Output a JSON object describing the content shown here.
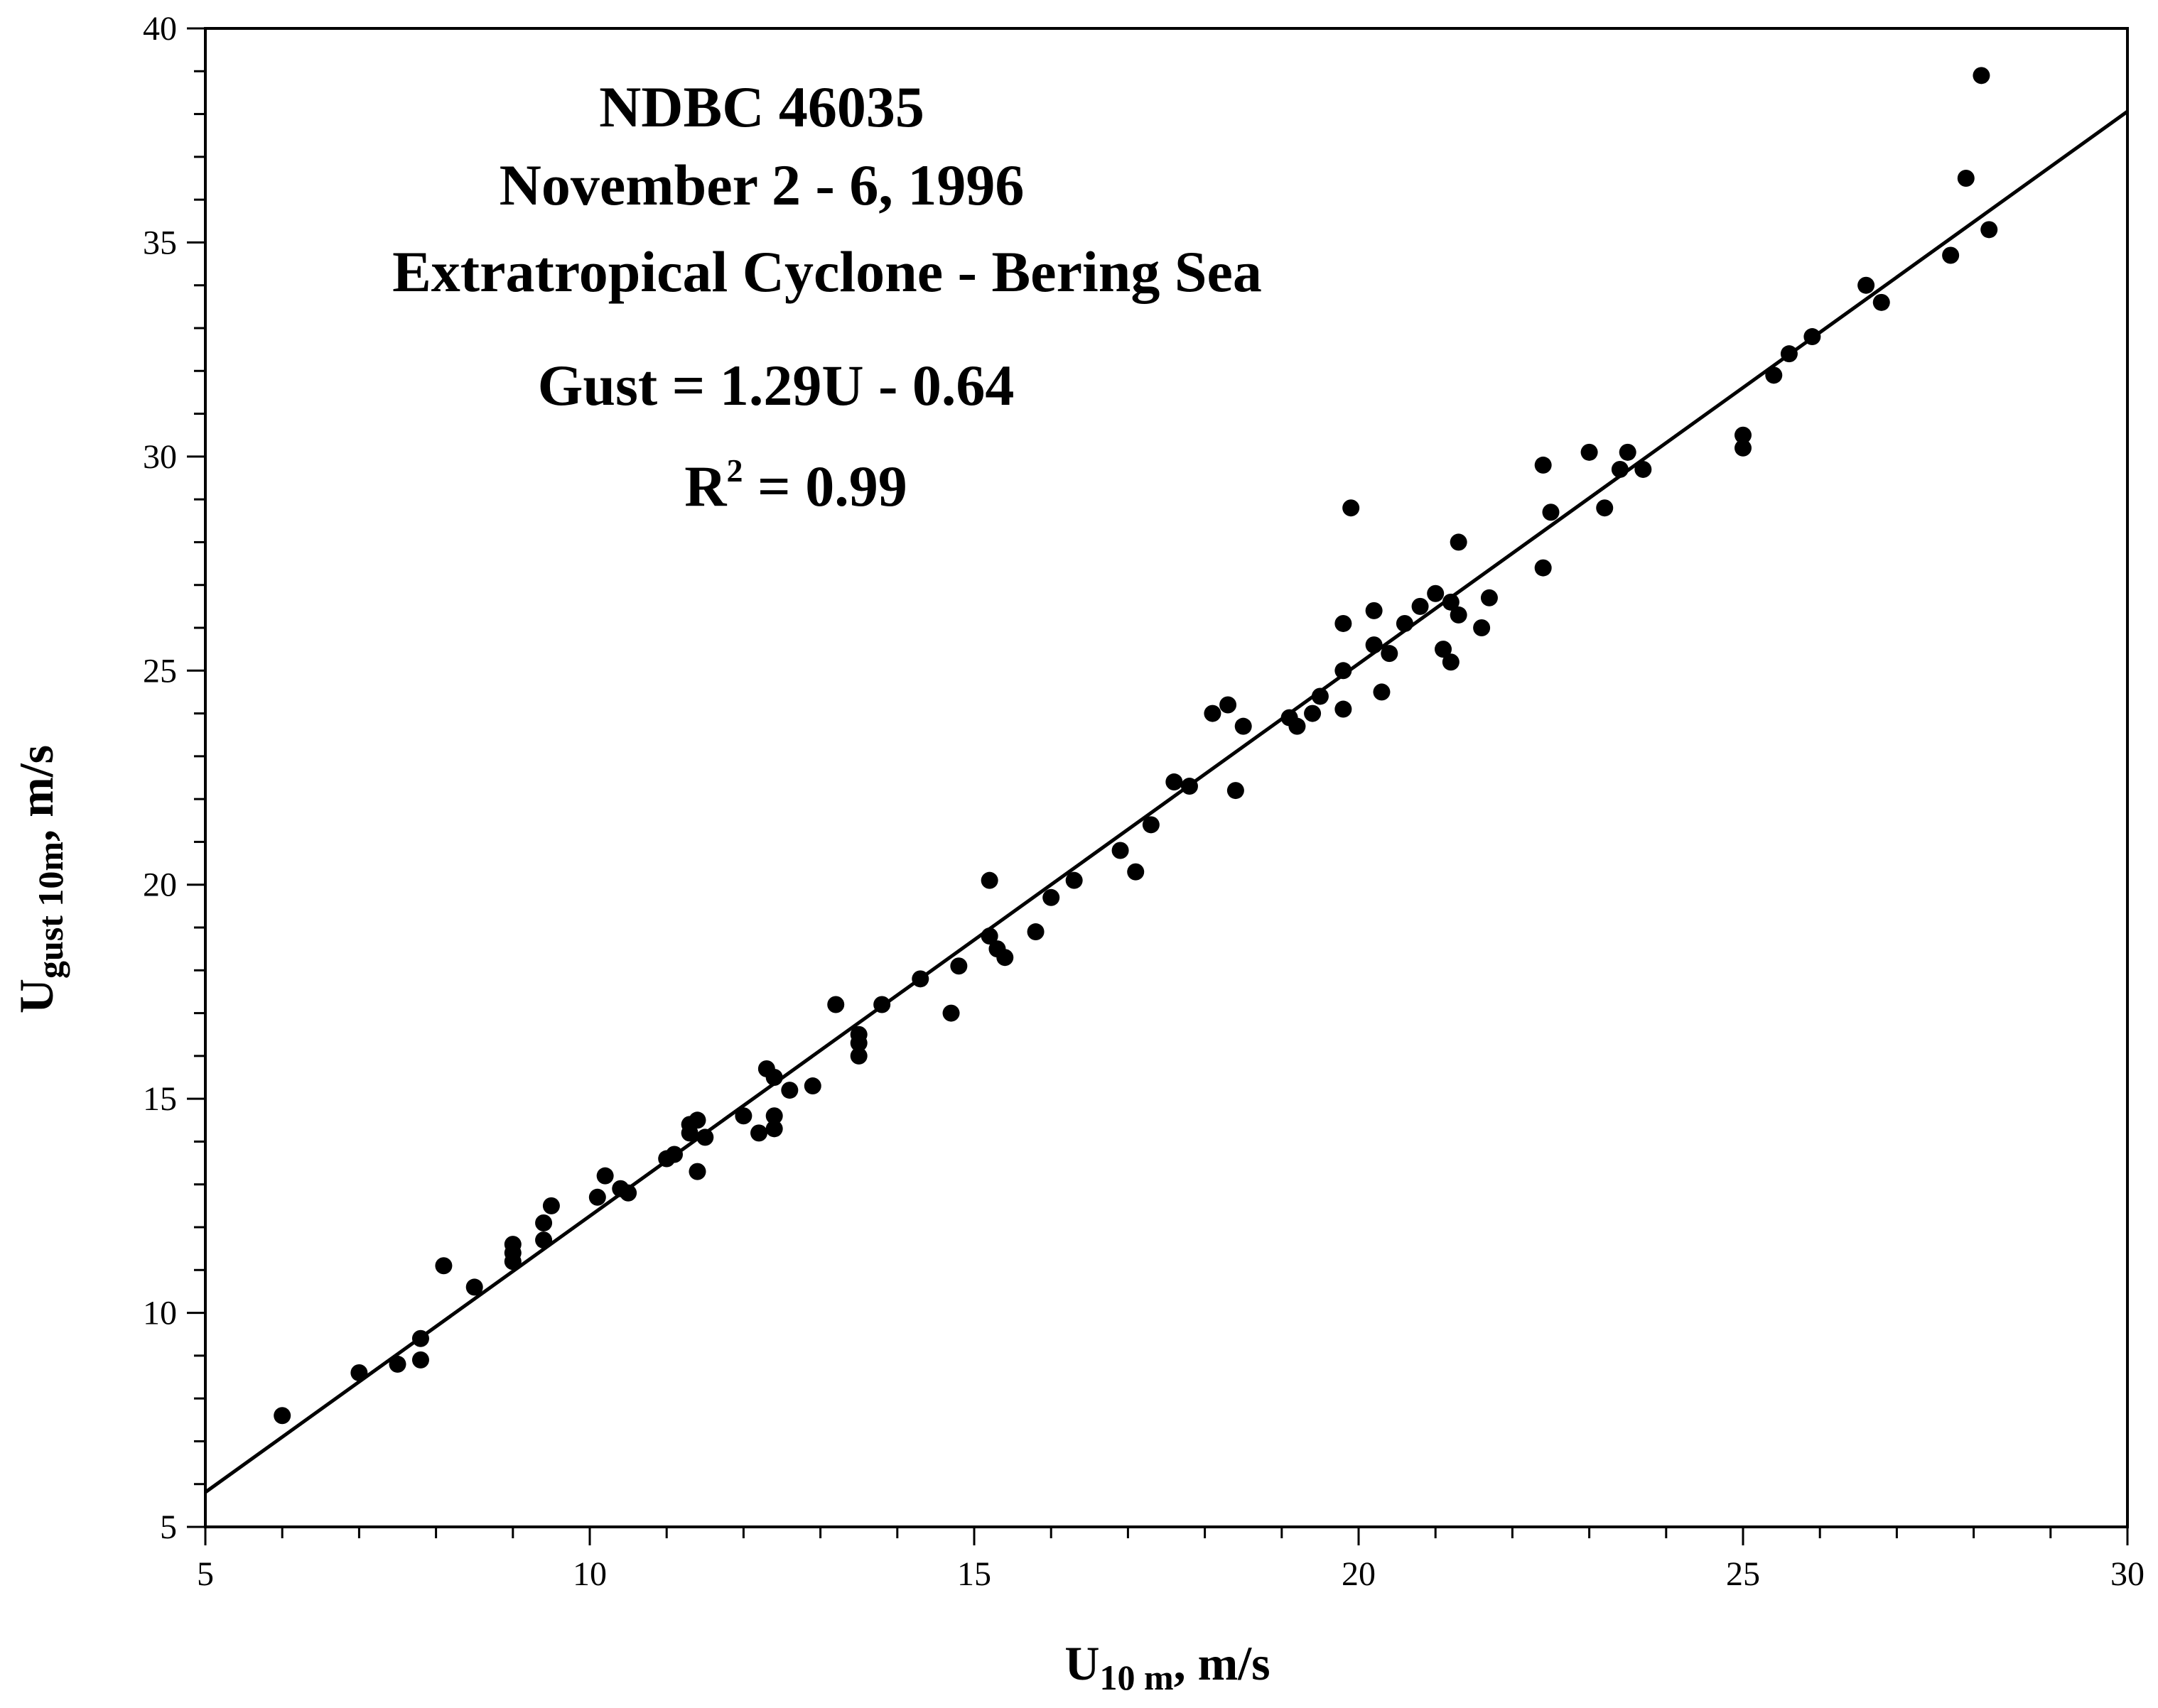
{
  "chart_data": {
    "type": "scatter",
    "title": [
      "NDBC 46035",
      "November 2 - 6, 1996",
      "Extratropical Cyclone - Bering Sea"
    ],
    "equation": "Gust = 1.29U - 0.64",
    "r2": {
      "base": "R",
      "sup": "2",
      "rest": " = 0.99"
    },
    "xlabel": {
      "base": "U",
      "sub": "10 m",
      "rest": ", m/s"
    },
    "ylabel": {
      "base": "U",
      "sub": "gust 10m",
      "rest": ", m/s"
    },
    "xlim": [
      5,
      30
    ],
    "ylim": [
      5,
      40
    ],
    "x_ticks": [
      5,
      10,
      15,
      20,
      25,
      30
    ],
    "y_ticks": [
      5,
      10,
      15,
      20,
      25,
      30,
      35,
      40
    ],
    "x_tick_labels": [
      "5",
      "10",
      "15",
      "20",
      "25",
      "30"
    ],
    "y_tick_labels": [
      "5",
      "10",
      "15",
      "20",
      "25",
      "30",
      "35",
      "40"
    ],
    "x_minor_step": 1,
    "y_minor_step": 1,
    "grid": false,
    "fit_line": {
      "slope": 1.29,
      "intercept": -0.64
    },
    "colors": {
      "axis": "#000000",
      "marker": "#000000",
      "line": "#000000"
    },
    "points": [
      [
        6.0,
        7.6
      ],
      [
        7.0,
        8.6
      ],
      [
        7.5,
        8.8
      ],
      [
        7.8,
        8.9
      ],
      [
        7.8,
        9.4
      ],
      [
        8.1,
        11.1
      ],
      [
        8.5,
        10.6
      ],
      [
        9.0,
        11.2
      ],
      [
        9.0,
        11.4
      ],
      [
        9.0,
        11.6
      ],
      [
        9.4,
        11.7
      ],
      [
        9.4,
        12.1
      ],
      [
        9.5,
        12.5
      ],
      [
        10.1,
        12.7
      ],
      [
        10.2,
        13.2
      ],
      [
        10.4,
        12.9
      ],
      [
        10.5,
        12.8
      ],
      [
        11.0,
        13.6
      ],
      [
        11.1,
        13.7
      ],
      [
        11.3,
        14.2
      ],
      [
        11.3,
        14.4
      ],
      [
        11.4,
        14.5
      ],
      [
        11.4,
        13.3
      ],
      [
        11.5,
        14.1
      ],
      [
        12.0,
        14.6
      ],
      [
        12.2,
        14.2
      ],
      [
        12.3,
        15.7
      ],
      [
        12.4,
        15.5
      ],
      [
        12.4,
        14.6
      ],
      [
        12.4,
        14.3
      ],
      [
        12.6,
        15.2
      ],
      [
        12.9,
        15.3
      ],
      [
        13.2,
        17.2
      ],
      [
        13.5,
        16.5
      ],
      [
        13.5,
        16.3
      ],
      [
        13.5,
        16.0
      ],
      [
        13.8,
        17.2
      ],
      [
        14.3,
        17.8
      ],
      [
        14.7,
        17.0
      ],
      [
        14.8,
        18.1
      ],
      [
        15.2,
        20.1
      ],
      [
        15.2,
        18.8
      ],
      [
        15.3,
        18.5
      ],
      [
        15.4,
        18.3
      ],
      [
        15.8,
        18.9
      ],
      [
        16.0,
        19.7
      ],
      [
        16.3,
        20.1
      ],
      [
        16.9,
        20.8
      ],
      [
        17.1,
        20.3
      ],
      [
        17.3,
        21.4
      ],
      [
        17.6,
        22.4
      ],
      [
        17.8,
        22.3
      ],
      [
        18.1,
        24.0
      ],
      [
        18.3,
        24.2
      ],
      [
        18.4,
        22.2
      ],
      [
        18.5,
        23.7
      ],
      [
        19.1,
        23.9
      ],
      [
        19.2,
        23.7
      ],
      [
        19.4,
        24.0
      ],
      [
        19.5,
        24.4
      ],
      [
        19.8,
        26.1
      ],
      [
        19.8,
        25.0
      ],
      [
        19.8,
        24.1
      ],
      [
        19.9,
        28.8
      ],
      [
        20.2,
        26.4
      ],
      [
        20.2,
        25.6
      ],
      [
        20.3,
        24.5
      ],
      [
        20.4,
        25.4
      ],
      [
        20.6,
        26.1
      ],
      [
        20.8,
        26.5
      ],
      [
        21.0,
        26.8
      ],
      [
        21.1,
        25.5
      ],
      [
        21.2,
        25.2
      ],
      [
        21.2,
        26.6
      ],
      [
        21.3,
        28.0
      ],
      [
        21.3,
        26.3
      ],
      [
        21.6,
        26.0
      ],
      [
        21.7,
        26.7
      ],
      [
        22.4,
        29.8
      ],
      [
        22.4,
        27.4
      ],
      [
        22.5,
        28.7
      ],
      [
        23.0,
        30.1
      ],
      [
        23.2,
        28.8
      ],
      [
        23.4,
        29.7
      ],
      [
        23.5,
        30.1
      ],
      [
        23.7,
        29.7
      ],
      [
        25.0,
        30.5
      ],
      [
        25.0,
        30.2
      ],
      [
        25.4,
        31.9
      ],
      [
        25.6,
        32.4
      ],
      [
        25.9,
        32.8
      ],
      [
        26.6,
        34.0
      ],
      [
        26.8,
        33.6
      ],
      [
        27.7,
        34.7
      ],
      [
        27.9,
        36.5
      ],
      [
        28.1,
        38.9
      ],
      [
        28.2,
        35.3
      ]
    ]
  }
}
